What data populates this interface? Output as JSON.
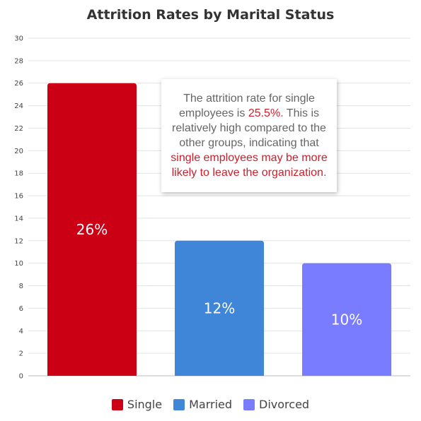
{
  "chart_data": {
    "type": "bar",
    "title": "Attrition Rates by Marital Status",
    "xlabel": "",
    "ylabel": "",
    "categories": [
      "Single",
      "Married",
      "Divorced"
    ],
    "values": [
      26,
      12,
      10
    ],
    "value_labels": [
      "26%",
      "12%",
      "10%"
    ],
    "colors": [
      "#cc0015",
      "#3f86d8",
      "#7a7cff"
    ],
    "ylim": [
      0,
      30
    ],
    "yticks": [
      "0",
      "2",
      "4",
      "6",
      "8",
      "10",
      "12",
      "14",
      "16",
      "18",
      "20",
      "22",
      "24",
      "26",
      "28",
      "30"
    ],
    "grid": true,
    "legend_position": "bottom",
    "legend": [
      "Single",
      "Married",
      "Divorced"
    ]
  },
  "annotation": {
    "part1": "The attrition rate for single employees is ",
    "highlight1": "25.5%",
    "part2": ". This is relatively high compared to the other groups, indicating that ",
    "highlight2": "single employees may be more likely to leave the organization",
    "part3": "."
  }
}
